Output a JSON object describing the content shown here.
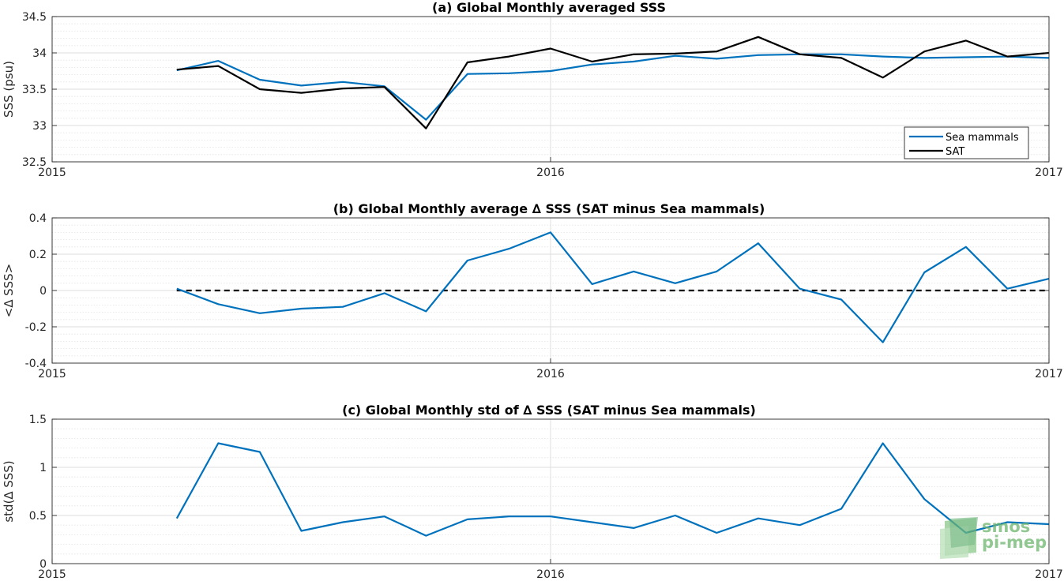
{
  "chart_data": [
    {
      "type": "line",
      "title": "(a) Global Monthly averaged SSS",
      "ylabel": "SSS (psu)",
      "xlim": [
        "2015",
        "2017"
      ],
      "ylim": [
        32.5,
        34.5
      ],
      "x_ticks": [
        "2015",
        "2016",
        "2017"
      ],
      "y_ticks": [
        "32.5",
        "33",
        "33.5",
        "34",
        "34.5"
      ],
      "grid": true,
      "legend_position": "bottom-right",
      "x": [
        "2015-04",
        "2015-05",
        "2015-06",
        "2015-07",
        "2015-08",
        "2015-09",
        "2015-10",
        "2015-11",
        "2015-12",
        "2016-01",
        "2016-02",
        "2016-03",
        "2016-04",
        "2016-05",
        "2016-06",
        "2016-07",
        "2016-08",
        "2016-09",
        "2016-10",
        "2016-11",
        "2016-12",
        "2017-01"
      ],
      "series": [
        {
          "name": "Sea mammals",
          "color": "#0072BD",
          "values": [
            33.76,
            33.89,
            33.63,
            33.55,
            33.6,
            33.54,
            33.08,
            33.71,
            33.72,
            33.75,
            33.84,
            33.88,
            33.96,
            33.92,
            33.97,
            33.98,
            33.98,
            33.95,
            33.93,
            33.94,
            33.95,
            33.93
          ]
        },
        {
          "name": "SAT",
          "color": "#000000",
          "values": [
            33.77,
            33.82,
            33.5,
            33.45,
            33.51,
            33.53,
            32.96,
            33.87,
            33.95,
            34.06,
            33.88,
            33.98,
            33.99,
            34.02,
            34.22,
            33.98,
            33.93,
            33.66,
            34.02,
            34.17,
            33.95,
            34.0
          ]
        }
      ]
    },
    {
      "type": "line",
      "title": "(b) Global Monthly average ∆ SSS (SAT minus Sea mammals)",
      "ylabel": "<∆ SSS>",
      "xlim": [
        "2015",
        "2017"
      ],
      "ylim": [
        -0.4,
        0.4
      ],
      "x_ticks": [
        "2015",
        "2016",
        "2017"
      ],
      "y_ticks": [
        "-0.4",
        "-0.2",
        "0",
        "0.2",
        "0.4"
      ],
      "grid": true,
      "reference_line": {
        "y": 0,
        "style": "dashed",
        "color": "#000000"
      },
      "x": [
        "2015-04",
        "2015-05",
        "2015-06",
        "2015-07",
        "2015-08",
        "2015-09",
        "2015-10",
        "2015-11",
        "2015-12",
        "2016-01",
        "2016-02",
        "2016-03",
        "2016-04",
        "2016-05",
        "2016-06",
        "2016-07",
        "2016-08",
        "2016-09",
        "2016-10",
        "2016-11",
        "2016-12",
        "2017-01"
      ],
      "series": [
        {
          "color": "#0072BD",
          "values": [
            0.01,
            -0.075,
            -0.125,
            -0.1,
            -0.09,
            -0.015,
            -0.115,
            0.165,
            0.23,
            0.32,
            0.035,
            0.105,
            0.04,
            0.105,
            0.26,
            0.01,
            -0.05,
            -0.285,
            0.1,
            0.24,
            0.01,
            0.065
          ]
        }
      ]
    },
    {
      "type": "line",
      "title": "(c) Global Monthly std of ∆ SSS (SAT minus Sea mammals)",
      "ylabel": "std(∆ SSS)",
      "xlim": [
        "2015",
        "2017"
      ],
      "ylim": [
        0,
        1.5
      ],
      "x_ticks": [
        "2015",
        "2016",
        "2017"
      ],
      "y_ticks": [
        "0",
        "0.5",
        "1",
        "1.5"
      ],
      "grid": true,
      "x": [
        "2015-04",
        "2015-05",
        "2015-06",
        "2015-07",
        "2015-08",
        "2015-09",
        "2015-10",
        "2015-11",
        "2015-12",
        "2016-01",
        "2016-02",
        "2016-03",
        "2016-04",
        "2016-05",
        "2016-06",
        "2016-07",
        "2016-08",
        "2016-09",
        "2016-10",
        "2016-11",
        "2016-12",
        "2017-01"
      ],
      "series": [
        {
          "color": "#0072BD",
          "values": [
            0.47,
            1.25,
            1.16,
            0.34,
            0.43,
            0.49,
            0.29,
            0.46,
            0.49,
            0.49,
            0.43,
            0.37,
            0.5,
            0.32,
            0.47,
            0.4,
            0.57,
            1.25,
            0.67,
            0.32,
            0.43,
            0.41
          ]
        }
      ]
    }
  ],
  "watermark": {
    "line1": "smos",
    "line2": "pi-mep",
    "color": "#6db56d"
  }
}
